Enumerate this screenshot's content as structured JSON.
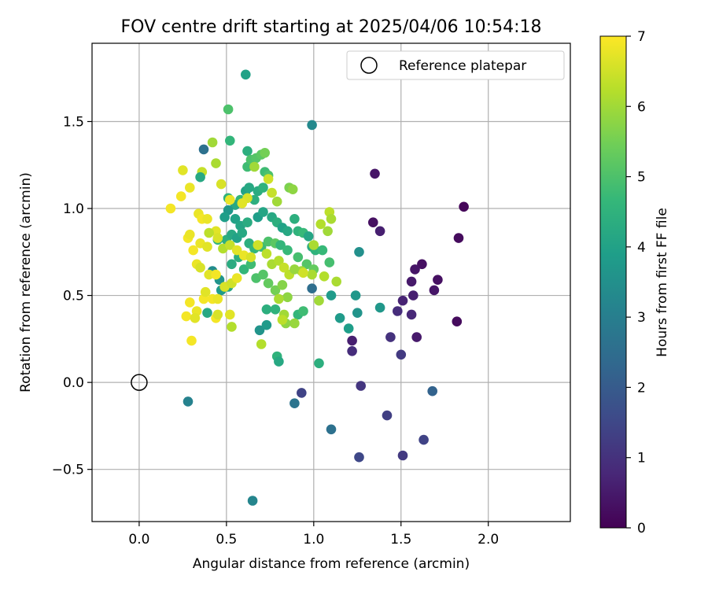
{
  "chart_data": {
    "type": "scatter",
    "title": "FOV centre drift starting at 2025/04/06 10:54:18",
    "xlabel": "Angular distance from reference (arcmin)",
    "ylabel": "Rotation from reference (arcmin)",
    "xlim": [
      -0.27,
      2.47
    ],
    "ylim": [
      -0.8,
      1.95
    ],
    "xticks": [
      0.0,
      0.5,
      1.0,
      1.5,
      2.0
    ],
    "xtick_labels": [
      "0.0",
      "0.5",
      "1.0",
      "1.5",
      "2.0"
    ],
    "yticks": [
      -0.5,
      0.0,
      0.5,
      1.0,
      1.5
    ],
    "ytick_labels": [
      "−0.5",
      "0.0",
      "0.5",
      "1.0",
      "1.5"
    ],
    "grid": true,
    "legend": {
      "position": "top-right",
      "label": "Reference platepar"
    },
    "reference": {
      "x": 0.0,
      "y": 0.0
    },
    "colorbar": {
      "label": "Hours from first FF file",
      "min": 0,
      "max": 7,
      "ticks": [
        0,
        1,
        2,
        3,
        4,
        5,
        6,
        7
      ],
      "tick_labels": [
        "0",
        "1",
        "2",
        "3",
        "4",
        "5",
        "6",
        "7"
      ],
      "colormap": "viridis",
      "colors": [
        "#440154",
        "#482878",
        "#3e4a89",
        "#31688e",
        "#26828e",
        "#1f9e89",
        "#35b779",
        "#6ece58",
        "#b5de2b",
        "#fde725"
      ]
    },
    "points": [
      [
        1.86,
        1.01,
        0.1
      ],
      [
        1.83,
        0.83,
        0.2
      ],
      [
        1.71,
        0.59,
        0.3
      ],
      [
        1.69,
        0.53,
        0.4
      ],
      [
        1.62,
        0.68,
        0.3
      ],
      [
        1.58,
        0.65,
        0.4
      ],
      [
        1.56,
        0.58,
        0.5
      ],
      [
        1.57,
        0.5,
        0.6
      ],
      [
        1.51,
        0.47,
        0.7
      ],
      [
        1.56,
        0.39,
        0.8
      ],
      [
        1.48,
        0.41,
        0.9
      ],
      [
        1.59,
        0.26,
        0.5
      ],
      [
        1.82,
        0.35,
        0.2
      ],
      [
        1.38,
        0.87,
        0.6
      ],
      [
        1.35,
        1.2,
        0.4
      ],
      [
        1.34,
        0.92,
        0.3
      ],
      [
        1.44,
        0.26,
        1.0
      ],
      [
        1.5,
        0.16,
        1.2
      ],
      [
        1.22,
        0.24,
        0.6
      ],
      [
        1.22,
        0.18,
        0.9
      ],
      [
        1.27,
        -0.02,
        1.1
      ],
      [
        1.42,
        -0.19,
        1.3
      ],
      [
        1.51,
        -0.42,
        1.2
      ],
      [
        1.63,
        -0.33,
        1.4
      ],
      [
        1.26,
        -0.43,
        1.5
      ],
      [
        1.68,
        -0.05,
        2.2
      ],
      [
        0.93,
        -0.06,
        1.4
      ],
      [
        1.1,
        -0.27,
        2.6
      ],
      [
        0.89,
        -0.12,
        2.7
      ],
      [
        0.28,
        -0.11,
        3.1
      ],
      [
        0.65,
        -0.68,
        3.2
      ],
      [
        0.37,
        1.34,
        2.6
      ],
      [
        0.99,
        0.54,
        2.5
      ],
      [
        1.25,
        0.4,
        3.6
      ],
      [
        1.26,
        0.75,
        3.5
      ],
      [
        1.24,
        0.5,
        3.7
      ],
      [
        1.15,
        0.37,
        3.8
      ],
      [
        1.2,
        0.31,
        3.9
      ],
      [
        1.38,
        0.43,
        3.7
      ],
      [
        0.99,
        1.48,
        3.3
      ],
      [
        0.61,
        1.77,
        4.0
      ],
      [
        1.03,
        0.11,
        4.4
      ],
      [
        0.79,
        0.15,
        4.5
      ],
      [
        0.8,
        0.12,
        4.2
      ],
      [
        0.69,
        0.3,
        3.6
      ],
      [
        0.73,
        0.33,
        3.8
      ],
      [
        0.73,
        0.42,
        4.4
      ],
      [
        0.78,
        0.42,
        4.5
      ],
      [
        0.91,
        0.39,
        4.6
      ],
      [
        0.94,
        0.41,
        4.8
      ],
      [
        0.39,
        0.4,
        4.2
      ],
      [
        0.62,
        1.33,
        4.4
      ],
      [
        0.52,
        1.39,
        4.6
      ],
      [
        0.51,
        1.57,
        5.0
      ],
      [
        0.62,
        1.24,
        4.8
      ],
      [
        0.64,
        1.28,
        5.0
      ],
      [
        0.67,
        1.29,
        5.1
      ],
      [
        0.7,
        1.31,
        5.2
      ],
      [
        0.72,
        1.32,
        5.5
      ],
      [
        0.72,
        1.21,
        4.8
      ],
      [
        0.74,
        1.19,
        5.0
      ],
      [
        0.68,
        1.1,
        4.3
      ],
      [
        0.71,
        1.12,
        4.5
      ],
      [
        0.61,
        1.1,
        4.0
      ],
      [
        0.63,
        1.12,
        4.2
      ],
      [
        0.66,
        1.05,
        4.4
      ],
      [
        0.58,
        1.05,
        4.6
      ],
      [
        0.55,
        1.02,
        4.2
      ],
      [
        0.51,
        1.06,
        4.5
      ],
      [
        0.51,
        0.99,
        3.7
      ],
      [
        0.49,
        0.95,
        3.9
      ],
      [
        0.55,
        0.94,
        4.0
      ],
      [
        0.58,
        0.9,
        4.1
      ],
      [
        0.62,
        0.92,
        4.3
      ],
      [
        0.68,
        0.95,
        3.9
      ],
      [
        0.71,
        0.98,
        4.1
      ],
      [
        0.76,
        0.95,
        4.2
      ],
      [
        0.79,
        0.92,
        4.4
      ],
      [
        0.82,
        0.89,
        4.0
      ],
      [
        0.85,
        0.87,
        4.2
      ],
      [
        0.89,
        0.94,
        4.4
      ],
      [
        0.91,
        0.87,
        4.5
      ],
      [
        0.94,
        0.86,
        4.7
      ],
      [
        0.97,
        0.84,
        4.1
      ],
      [
        0.99,
        0.78,
        4.3
      ],
      [
        1.01,
        0.76,
        4.5
      ],
      [
        1.05,
        0.76,
        4.7
      ],
      [
        1.09,
        0.69,
        4.9
      ],
      [
        1.1,
        0.5,
        3.8
      ],
      [
        0.45,
        0.82,
        4.6
      ],
      [
        0.5,
        0.82,
        4.4
      ],
      [
        0.53,
        0.85,
        4.2
      ],
      [
        0.56,
        0.83,
        4.0
      ],
      [
        0.59,
        0.86,
        4.2
      ],
      [
        0.63,
        0.8,
        4.4
      ],
      [
        0.66,
        0.77,
        4.6
      ],
      [
        0.7,
        0.78,
        4.8
      ],
      [
        0.74,
        0.81,
        5.0
      ],
      [
        0.78,
        0.8,
        5.2
      ],
      [
        0.81,
        0.79,
        4.6
      ],
      [
        0.85,
        0.76,
        4.7
      ],
      [
        0.91,
        0.72,
        4.9
      ],
      [
        0.96,
        0.68,
        5.1
      ],
      [
        1.0,
        0.65,
        5.3
      ],
      [
        0.42,
        0.64,
        3.4
      ],
      [
        0.46,
        0.59,
        3.6
      ],
      [
        0.47,
        0.53,
        3.8
      ],
      [
        0.51,
        0.55,
        4.1
      ],
      [
        0.53,
        0.68,
        4.3
      ],
      [
        0.57,
        0.72,
        4.4
      ],
      [
        0.6,
        0.65,
        4.6
      ],
      [
        0.64,
        0.68,
        4.8
      ],
      [
        0.67,
        0.6,
        5.0
      ],
      [
        0.71,
        0.62,
        5.1
      ],
      [
        0.74,
        0.57,
        5.3
      ],
      [
        0.78,
        0.53,
        5.5
      ],
      [
        0.82,
        0.56,
        5.7
      ],
      [
        0.85,
        0.49,
        5.8
      ],
      [
        0.89,
        0.34,
        5.9
      ],
      [
        0.93,
        0.64,
        6.0
      ],
      [
        0.99,
        0.62,
        6.1
      ],
      [
        1.03,
        0.47,
        6.0
      ],
      [
        1.06,
        0.61,
        6.2
      ],
      [
        1.13,
        0.58,
        6.1
      ],
      [
        1.08,
        0.87,
        6.0
      ],
      [
        1.09,
        0.98,
        6.3
      ],
      [
        1.1,
        0.94,
        6.1
      ],
      [
        1.04,
        0.91,
        6.2
      ],
      [
        1.0,
        0.79,
        6.1
      ],
      [
        0.86,
        1.12,
        5.6
      ],
      [
        0.88,
        1.11,
        5.8
      ],
      [
        0.79,
        1.04,
        6.0
      ],
      [
        0.76,
        1.09,
        6.4
      ],
      [
        0.74,
        1.17,
        6.5
      ],
      [
        0.66,
        1.24,
        6.0
      ],
      [
        0.62,
        1.06,
        6.6
      ],
      [
        0.59,
        1.03,
        6.7
      ],
      [
        0.52,
        1.05,
        6.8
      ],
      [
        0.47,
        1.14,
        6.6
      ],
      [
        0.42,
        1.38,
        6.0
      ],
      [
        0.44,
        1.26,
        6.1
      ],
      [
        0.36,
        1.21,
        6.4
      ],
      [
        0.35,
        1.18,
        4.2
      ],
      [
        0.25,
        1.22,
        6.7
      ],
      [
        0.29,
        1.12,
        6.8
      ],
      [
        0.24,
        1.07,
        6.9
      ],
      [
        0.18,
        1.0,
        6.9
      ],
      [
        0.34,
        0.97,
        6.8
      ],
      [
        0.36,
        0.94,
        6.9
      ],
      [
        0.39,
        0.94,
        6.8
      ],
      [
        0.44,
        0.87,
        6.7
      ],
      [
        0.4,
        0.86,
        6.3
      ],
      [
        0.45,
        0.83,
        6.6
      ],
      [
        0.48,
        0.77,
        6.2
      ],
      [
        0.52,
        0.79,
        6.4
      ],
      [
        0.56,
        0.76,
        6.7
      ],
      [
        0.6,
        0.73,
        6.8
      ],
      [
        0.64,
        0.72,
        6.6
      ],
      [
        0.68,
        0.79,
        6.5
      ],
      [
        0.73,
        0.74,
        6.3
      ],
      [
        0.76,
        0.68,
        6.1
      ],
      [
        0.8,
        0.7,
        6.2
      ],
      [
        0.83,
        0.66,
        6.4
      ],
      [
        0.86,
        0.62,
        6.3
      ],
      [
        0.89,
        0.65,
        5.9
      ],
      [
        0.94,
        0.63,
        6.5
      ],
      [
        0.8,
        0.48,
        6.1
      ],
      [
        0.83,
        0.39,
        6.0
      ],
      [
        0.84,
        0.34,
        5.8
      ],
      [
        0.82,
        0.36,
        6.3
      ],
      [
        0.7,
        0.22,
        6.2
      ],
      [
        0.28,
        0.83,
        6.9
      ],
      [
        0.29,
        0.85,
        6.8
      ],
      [
        0.31,
        0.76,
        6.9
      ],
      [
        0.35,
        0.8,
        6.8
      ],
      [
        0.39,
        0.78,
        6.7
      ],
      [
        0.33,
        0.68,
        6.8
      ],
      [
        0.35,
        0.66,
        6.6
      ],
      [
        0.4,
        0.62,
        6.7
      ],
      [
        0.44,
        0.62,
        6.9
      ],
      [
        0.49,
        0.55,
        6.6
      ],
      [
        0.53,
        0.57,
        6.5
      ],
      [
        0.56,
        0.6,
        6.8
      ],
      [
        0.42,
        0.48,
        6.9
      ],
      [
        0.45,
        0.48,
        6.8
      ],
      [
        0.37,
        0.48,
        6.9
      ],
      [
        0.38,
        0.52,
        6.7
      ],
      [
        0.29,
        0.46,
        6.9
      ],
      [
        0.33,
        0.41,
        6.8
      ],
      [
        0.27,
        0.38,
        6.9
      ],
      [
        0.32,
        0.37,
        6.7
      ],
      [
        0.44,
        0.37,
        6.9
      ],
      [
        0.45,
        0.39,
        6.6
      ],
      [
        0.3,
        0.24,
        6.9
      ],
      [
        0.52,
        0.39,
        6.7
      ],
      [
        0.53,
        0.32,
        6.2
      ]
    ]
  }
}
